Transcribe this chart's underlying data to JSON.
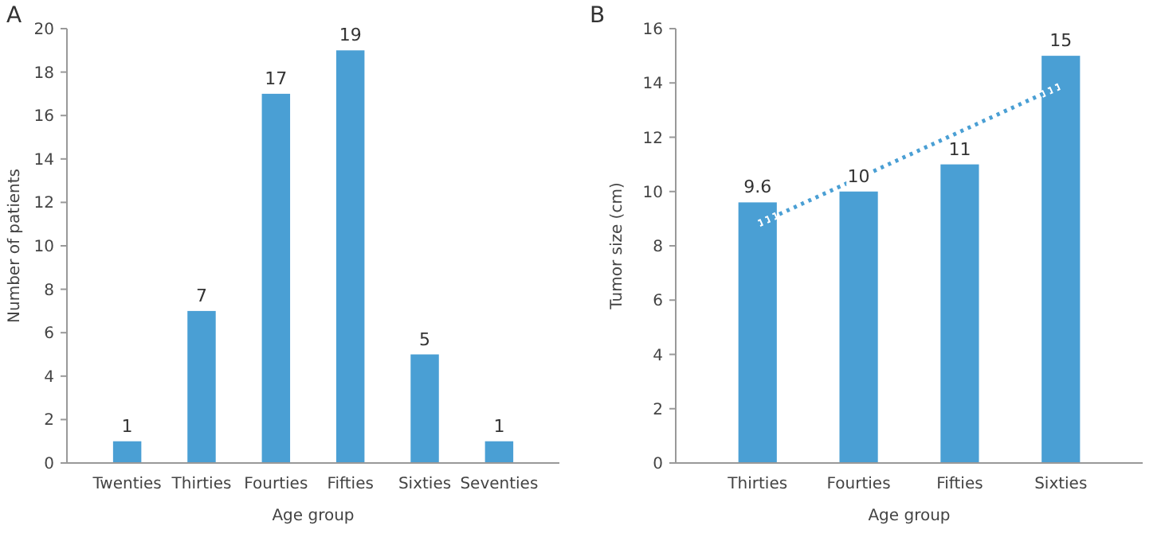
{
  "chart_data": [
    {
      "type": "bar",
      "title": "A",
      "xlabel": "Age group",
      "ylabel": "Number of patients",
      "categories": [
        "Twenties",
        "Thirties",
        "Fourties",
        "Fifties",
        "Sixties",
        "Seventies"
      ],
      "values": [
        1,
        7,
        17,
        19,
        5,
        1
      ],
      "color": "#4a9fd4",
      "ylim": [
        0,
        20
      ],
      "yticks": [
        0,
        2,
        4,
        6,
        8,
        10,
        12,
        14,
        16,
        18,
        20
      ],
      "data_labels": true
    },
    {
      "type": "bar",
      "title": "B",
      "xlabel": "Age group",
      "ylabel": "Tumor size (cm)",
      "categories": [
        "Thirties",
        "Fourties",
        "Fifties",
        "Sixties"
      ],
      "series": [
        {
          "type": "bar",
          "color": "#4a9fd4",
          "values": [
            9.6,
            10,
            11,
            15
          ],
          "value_labels": [
            "9.6",
            "10",
            "11",
            "15"
          ]
        },
        {
          "type": "line",
          "color": "#4a9fd4",
          "values": [
            8.8,
            10.5,
            12.2,
            13.9
          ],
          "line_style": "dotted"
        }
      ],
      "ylim": [
        0,
        16
      ],
      "yticks": [
        0,
        2,
        4,
        6,
        8,
        10,
        12,
        14,
        16
      ]
    }
  ]
}
